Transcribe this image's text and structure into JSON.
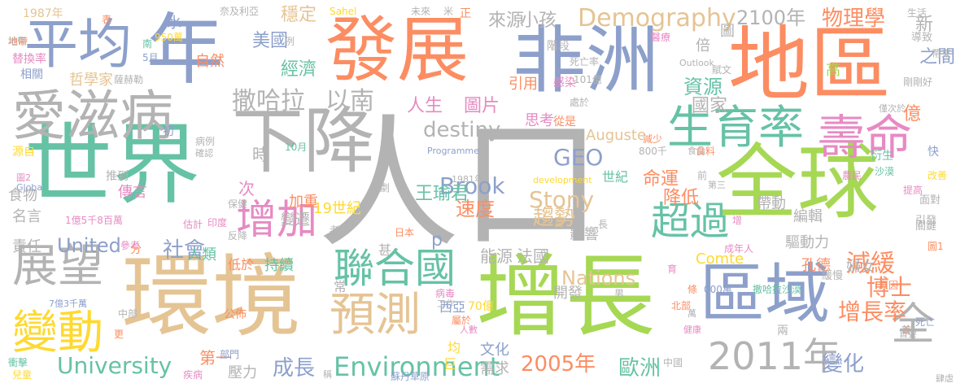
{
  "palette": {
    "green": "#66c2a5",
    "orange": "#fc8d62",
    "blue": "#8da0cb",
    "pink": "#e78ac3",
    "lime": "#a6d854",
    "yellow": "#ffd92f",
    "tan": "#e5c494",
    "gray": "#b3b3b3"
  },
  "words": [
    {
      "id": "renkou",
      "text": "人口",
      "color": "#b3b3b3"
    },
    {
      "id": "shijie",
      "text": "世界",
      "color": "#66c2a5"
    },
    {
      "id": "huanjing",
      "text": "環境",
      "color": "#e5c494"
    },
    {
      "id": "zengzhang",
      "text": "增長",
      "color": "#a6d854"
    },
    {
      "id": "quanqiu",
      "text": "全球",
      "color": "#a6d854"
    },
    {
      "id": "diqu",
      "text": "地區",
      "color": "#fc8d62"
    },
    {
      "id": "feizhou",
      "text": "非洲",
      "color": "#8da0cb"
    },
    {
      "id": "fazhan",
      "text": "發展",
      "color": "#fc8d62"
    },
    {
      "id": "nian",
      "text": "年",
      "color": "#8da0cb"
    },
    {
      "id": "xiajiang",
      "text": "下降",
      "color": "#b3b3b3"
    },
    {
      "id": "quyu",
      "text": "區域",
      "color": "#8da0cb"
    },
    {
      "id": "aizibing",
      "text": "愛滋病",
      "color": "#b3b3b3"
    },
    {
      "id": "pingjun",
      "text": "平均",
      "color": "#8da0cb"
    },
    {
      "id": "shouming",
      "text": "壽命",
      "color": "#e78ac3"
    },
    {
      "id": "shengyulu",
      "text": "生育率",
      "color": "#66c2a5"
    },
    {
      "id": "zhanwang",
      "text": "展望",
      "color": "#b3b3b3"
    },
    {
      "id": "biandong",
      "text": "變動",
      "color": "#ffd92f"
    },
    {
      "id": "yuce",
      "text": "預測",
      "color": "#e5c494"
    },
    {
      "id": "lianheguo",
      "text": "聯合國",
      "color": "#66c2a5"
    },
    {
      "id": "y2011",
      "text": "2011年",
      "color": "#b3b3b3"
    },
    {
      "id": "zengjia",
      "text": "增加",
      "color": "#e78ac3"
    },
    {
      "id": "chaoguo",
      "text": "超過",
      "color": "#66c2a5"
    },
    {
      "id": "environment",
      "text": "Environment",
      "color": "#66c2a5"
    },
    {
      "id": "quan",
      "text": "全",
      "color": "#b3b3b3"
    },
    {
      "id": "sahala",
      "text": "撒哈拉",
      "color": "#b3b3b3"
    },
    {
      "id": "yinan",
      "text": "以南",
      "color": "#b3b3b3"
    },
    {
      "id": "demography",
      "text": "Demography",
      "color": "#e5c494"
    },
    {
      "id": "university",
      "text": "University",
      "color": "#66c2a5"
    },
    {
      "id": "jianhuan",
      "text": "減緩",
      "color": "#fc8d62"
    },
    {
      "id": "zengzhanglu",
      "text": "增長率",
      "color": "#fc8d62"
    },
    {
      "id": "boshi",
      "text": "博士",
      "color": "#fc8d62"
    },
    {
      "id": "y2005",
      "text": "2005年",
      "color": "#fc8d62"
    },
    {
      "id": "oumei",
      "text": "歐洲",
      "color": "#66c2a5"
    },
    {
      "id": "bianhua",
      "text": "變化",
      "color": "#8da0cb"
    },
    {
      "id": "chengzhang",
      "text": "成長",
      "color": "#8da0cb"
    },
    {
      "id": "stony",
      "text": "Stony",
      "color": "#e5c494"
    },
    {
      "id": "brook",
      "text": "Brook",
      "color": "#8da0cb"
    },
    {
      "id": "geo",
      "text": "GEO",
      "color": "#8da0cb"
    },
    {
      "id": "qushi",
      "text": "趨勢",
      "color": "#e5c494"
    },
    {
      "id": "sudu",
      "text": "速度",
      "color": "#fc8d62"
    },
    {
      "id": "destiny",
      "text": "destiny",
      "color": "#b3b3b3"
    },
    {
      "id": "nations",
      "text": "Nations",
      "color": "#e5c494"
    },
    {
      "id": "united",
      "text": "United",
      "color": "#8da0cb"
    },
    {
      "id": "shehui",
      "text": "社會",
      "color": "#8da0cb"
    },
    {
      "id": "wuxingxue",
      "text": "物理學",
      "color": "#fc8d62"
    },
    {
      "id": "y2100",
      "text": "2100年",
      "color": "#b3b3b3"
    },
    {
      "id": "laiyuan",
      "text": "來源",
      "color": "#b3b3b3"
    },
    {
      "id": "xiaohai",
      "text": "小孩",
      "color": "#b3b3b3"
    },
    {
      "id": "wendin",
      "text": "穩定",
      "color": "#e5c494"
    },
    {
      "id": "meiguo",
      "text": "美國",
      "color": "#8da0cb"
    },
    {
      "id": "jingji",
      "text": "經濟",
      "color": "#66c2a5"
    },
    {
      "id": "ziyuan",
      "text": "資源",
      "color": "#66c2a5"
    },
    {
      "id": "guojia",
      "text": "國家",
      "color": "#b3b3b3"
    },
    {
      "id": "renshen",
      "text": "人生",
      "color": "#e78ac3"
    },
    {
      "id": "tupian",
      "text": "圖片",
      "color": "#e78ac3"
    },
    {
      "id": "wangyujun",
      "text": "王瑜君",
      "color": "#66c2a5"
    },
    {
      "id": "mingyun",
      "text": "命運",
      "color": "#fc8d62"
    },
    {
      "id": "jiangdi",
      "text": "降低",
      "color": "#fc8d62"
    },
    {
      "id": "bianji",
      "text": "編輯",
      "color": "#b3b3b3"
    },
    {
      "id": "qudongli",
      "text": "驅動力",
      "color": "#b3b3b3"
    },
    {
      "id": "daidong",
      "text": "帶動",
      "color": "#b3b3b3"
    },
    {
      "id": "kongde",
      "text": "孔德",
      "color": "#fc8d62"
    },
    {
      "id": "funv",
      "text": "婦女",
      "color": "#b3b3b3"
    },
    {
      "id": "auguste",
      "text": "Auguste",
      "color": "#e5c494"
    },
    {
      "id": "comte",
      "text": "Comte",
      "color": "#ffd92f"
    },
    {
      "id": "nengyuan",
      "text": "能源",
      "color": "#b3b3b3"
    },
    {
      "id": "faguo",
      "text": "法國",
      "color": "#b3b3b3"
    },
    {
      "id": "yingxiang",
      "text": "影響",
      "color": "#b3b3b3"
    },
    {
      "id": "yi",
      "text": "億",
      "color": "#fc8d62"
    },
    {
      "id": "xin",
      "text": "新",
      "color": "#b3b3b3"
    },
    {
      "id": "zhijian",
      "text": "之間",
      "color": "#8da0cb"
    },
    {
      "id": "zhixue",
      "text": "哲學家",
      "color": "#e5c494"
    },
    {
      "id": "shiwu",
      "text": "食物",
      "color": "#b3b3b3"
    },
    {
      "id": "chuanyan",
      "text": "傳言",
      "color": "#e78ac3"
    },
    {
      "id": "mingyan",
      "text": "名言",
      "color": "#b3b3b3"
    },
    {
      "id": "zeren",
      "text": "責任",
      "color": "#b3b3b3"
    },
    {
      "id": "jiazhong",
      "text": "加重",
      "color": "#fc8d62"
    },
    {
      "id": "bianqian",
      "text": "變遷",
      "color": "#b3b3b3"
    },
    {
      "id": "c19",
      "text": "19世紀",
      "color": "#ffd92f"
    },
    {
      "id": "renlei",
      "text": "人類",
      "color": "#66c2a5"
    },
    {
      "id": "chixu",
      "text": "持續",
      "color": "#66c2a5"
    },
    {
      "id": "diyu",
      "text": "低於",
      "color": "#fc8d62"
    },
    {
      "id": "diyi",
      "text": "第一",
      "color": "#fc8d62"
    },
    {
      "id": "yali",
      "text": "壓力",
      "color": "#b3b3b3"
    },
    {
      "id": "xuqiu",
      "text": "需求",
      "color": "#b3b3b3"
    },
    {
      "id": "wenhua",
      "text": "文化",
      "color": "#8da0cb"
    },
    {
      "id": "kaifa",
      "text": "開發",
      "color": "#b3b3b3"
    },
    {
      "id": "shi",
      "text": "時",
      "color": "#b3b3b3"
    },
    {
      "id": "ci",
      "text": "次",
      "color": "#e78ac3"
    },
    {
      "id": "y1987",
      "text": "1987年",
      "color": "#e5c494"
    },
    {
      "id": "tihuanlu",
      "text": "替換率",
      "color": "#e78ac3"
    },
    {
      "id": "xiangguan",
      "text": "相關",
      "color": "#8da0cb"
    },
    {
      "id": "ziran",
      "text": "自然",
      "color": "#fc8d62"
    },
    {
      "id": "shui",
      "text": "水",
      "color": "#8da0cb"
    },
    {
      "id": "yinyong",
      "text": "引用",
      "color": "#fc8d62"
    },
    {
      "id": "sihou",
      "text": "思考",
      "color": "#e78ac3"
    },
    {
      "id": "tu",
      "text": "圖",
      "color": "#b3b3b3"
    },
    {
      "id": "bei",
      "text": "倍",
      "color": "#b3b3b3"
    },
    {
      "id": "gao",
      "text": "高",
      "color": "#a6d854"
    },
    {
      "id": "p",
      "text": "p",
      "color": "#8da0cb"
    },
    {
      "id": "shiji",
      "text": "世紀",
      "color": "#66c2a5"
    },
    {
      "id": "yuan",
      "text": "源自",
      "color": "#ffd92f"
    },
    {
      "id": "tuidao",
      "text": "推到",
      "color": "#b3b3b3"
    },
    {
      "id": "jieduan",
      "text": "階段",
      "color": "#b3b3b3"
    },
    {
      "id": "m950",
      "text": "950萬",
      "color": "#ffd92f"
    },
    {
      "id": "yue5",
      "text": "5月",
      "color": "#8da0cb"
    },
    {
      "id": "yue10",
      "text": "10月",
      "color": "#66c2a5"
    },
    {
      "id": "nan",
      "text": "南",
      "color": "#66c2a5"
    },
    {
      "id": "dibu",
      "text": "地帶",
      "color": "#fc8d62"
    },
    {
      "id": "b101",
      "text": "101億",
      "color": "#b3b3b3"
    },
    {
      "id": "siwanglu",
      "text": "死亡率",
      "color": "#b3b3b3"
    },
    {
      "id": "ganran",
      "text": "感染",
      "color": "#e78ac3"
    },
    {
      "id": "chuyu",
      "text": "處於",
      "color": "#b3b3b3"
    },
    {
      "id": "congshi",
      "text": "從是",
      "color": "#fc8d62"
    },
    {
      "id": "fuwen",
      "text": "賦文",
      "color": "#b3b3b3"
    },
    {
      "id": "sahel",
      "text": "Sahel",
      "color": "#ffd92f"
    },
    {
      "id": "weilai",
      "text": "未來",
      "color": "#b3b3b3"
    },
    {
      "id": "outlook",
      "text": "Outlook",
      "color": "#b3b3b3"
    },
    {
      "id": "development",
      "text": "development",
      "color": "#ffd92f"
    },
    {
      "id": "programme",
      "text": "Programme",
      "color": "#8da0cb"
    },
    {
      "id": "global",
      "text": "Global",
      "color": "#8da0cb"
    },
    {
      "id": "ribben",
      "text": "日本",
      "color": "#fc8d62"
    },
    {
      "id": "xiya",
      "text": "西亞",
      "color": "#8da0cb"
    },
    {
      "id": "jun",
      "text": "均",
      "color": "#ffd92f"
    },
    {
      "id": "ju",
      "text": "巨",
      "color": "#ffd92f"
    },
    {
      "id": "shen",
      "text": "甚",
      "color": "#b3b3b3"
    },
    {
      "id": "chang",
      "text": "常",
      "color": "#b3b3b3"
    },
    {
      "id": "b70",
      "text": "70億",
      "color": "#ffd92f"
    },
    {
      "id": "sudan",
      "text": "蘇丹草原",
      "color": "#8da0cb"
    },
    {
      "id": "bingdu",
      "text": "病毒",
      "color": "#e78ac3"
    },
    {
      "id": "gongzuo",
      "text": "工作",
      "color": "#b3b3b3"
    },
    {
      "id": "shuyu",
      "text": "屬於",
      "color": "#fc8d62"
    },
    {
      "id": "renshu",
      "text": "人數",
      "color": "#e78ac3"
    },
    {
      "id": "zhongguo",
      "text": "中國",
      "color": "#b3b3b3"
    },
    {
      "id": "bingliang",
      "text": "病例",
      "color": "#b3b3b3"
    },
    {
      "id": "chu",
      "text": "初",
      "color": "#8da0cb"
    },
    {
      "id": "gonggao",
      "text": "公佈",
      "color": "#fc8d62"
    },
    {
      "id": "laohua",
      "text": "老化",
      "color": "#b3b3b3"
    },
    {
      "id": "yindu",
      "text": "印度",
      "color": "#e78ac3"
    },
    {
      "id": "gujie",
      "text": "估計",
      "color": "#e78ac3"
    },
    {
      "id": "baojian",
      "text": "保健",
      "color": "#b3b3b3"
    },
    {
      "id": "fanjiang",
      "text": "反降",
      "color": "#b3b3b3"
    },
    {
      "id": "fen",
      "text": "分",
      "color": "#fc8d62"
    },
    {
      "id": "cankao",
      "text": "參考",
      "color": "#e78ac3"
    },
    {
      "id": "zhongbu",
      "text": "中部",
      "color": "#b3b3b3"
    },
    {
      "id": "bumen",
      "text": "部門",
      "color": "#8da0cb"
    },
    {
      "id": "jibing",
      "text": "疾病",
      "color": "#e78ac3"
    },
    {
      "id": "chongji",
      "text": "衝擊",
      "color": "#66c2a5"
    },
    {
      "id": "ertong",
      "text": "兒童",
      "color": "#ffd92f"
    },
    {
      "id": "shouxiao",
      "text": "首",
      "color": "#fc8d62"
    },
    {
      "id": "siwang",
      "text": "死亡",
      "color": "#8da0cb"
    },
    {
      "id": "guanjian",
      "text": "關鍵",
      "color": "#b3b3b3"
    },
    {
      "id": "mianlin",
      "text": "面對",
      "color": "#b3b3b3"
    },
    {
      "id": "yinfa",
      "text": "引發",
      "color": "#b3b3b3"
    },
    {
      "id": "tu1",
      "text": "圖1",
      "color": "#fc8d62"
    },
    {
      "id": "tigao",
      "text": "提高",
      "color": "#e78ac3"
    },
    {
      "id": "gaishan",
      "text": "改善",
      "color": "#ffd92f"
    },
    {
      "id": "kuai",
      "text": "快",
      "color": "#8da0cb"
    },
    {
      "id": "yanshi",
      "text": "衍生",
      "color": "#66c2a5"
    },
    {
      "id": "shamo",
      "text": "沙漠",
      "color": "#66c2a5"
    },
    {
      "id": "nongmin",
      "text": "農民",
      "color": "#e78ac3"
    },
    {
      "id": "zhongdi",
      "text": "帶來",
      "color": "#b3b3b3"
    },
    {
      "id": "daozhi",
      "text": "導致",
      "color": "#b3b3b3"
    },
    {
      "id": "shenghuo",
      "text": "生活",
      "color": "#b3b3b3"
    },
    {
      "id": "yiliao",
      "text": "醫療",
      "color": "#e78ac3"
    },
    {
      "id": "jinci",
      "text": "僅次於",
      "color": "#b3b3b3"
    },
    {
      "id": "jinhuan",
      "text": "緩慢",
      "color": "#b3b3b3"
    },
    {
      "id": "chengren",
      "text": "成年人",
      "color": "#e78ac3"
    },
    {
      "id": "sahashamo",
      "text": "撒哈拉沙漠",
      "color": "#66c2a5"
    },
    {
      "id": "w000",
      "text": "000萬",
      "color": "#8da0cb"
    },
    {
      "id": "yuanyin",
      "text": "原因",
      "color": "#fc8d62"
    },
    {
      "id": "liang",
      "text": "兩",
      "color": "#b3b3b3"
    },
    {
      "id": "beibu",
      "text": "北部",
      "color": "#fc8d62"
    },
    {
      "id": "jiankang",
      "text": "健康",
      "color": "#e78ac3"
    },
    {
      "id": "nan2",
      "text": "男",
      "color": "#b3b3b3"
    },
    {
      "id": "shiwu2",
      "text": "食料",
      "color": "#fc8d62"
    },
    {
      "id": "jianshao",
      "text": "減少",
      "color": "#fc8d62"
    },
    {
      "id": "qian800",
      "text": "800千",
      "color": "#b3b3b3"
    },
    {
      "id": "sahelq",
      "text": "奈及利亞",
      "color": "#b3b3b3"
    },
    {
      "id": "mi",
      "text": "米",
      "color": "#b3b3b3"
    },
    {
      "id": "zheng",
      "text": "正",
      "color": "#fc8d62"
    },
    {
      "id": "biao",
      "text": "表",
      "color": "#fc8d62"
    },
    {
      "id": "li",
      "text": "例",
      "color": "#b3b3b3"
    },
    {
      "id": "zhang",
      "text": "長",
      "color": "#b3b3b3"
    },
    {
      "id": "yan",
      "text": "言",
      "color": "#e5c494"
    },
    {
      "id": "xxx",
      "text": "肆虐",
      "color": "#b3b3b3"
    },
    {
      "id": "gengyao",
      "text": "更",
      "color": "#fc8d62"
    },
    {
      "id": "qian",
      "text": "前",
      "color": "#b3b3b3"
    },
    {
      "id": "san",
      "text": "第三",
      "color": "#b3b3b3"
    },
    {
      "id": "tiao",
      "text": "條",
      "color": "#fc8d62"
    },
    {
      "id": "yu",
      "text": "育",
      "color": "#e78ac3"
    },
    {
      "id": "wan",
      "text": "萬",
      "color": "#b3b3b3"
    },
    {
      "id": "shouyi",
      "text": "首",
      "color": "#b3b3b3"
    },
    {
      "id": "zenggao",
      "text": "剛剛好",
      "color": "#b3b3b3"
    },
    {
      "id": "yuedi",
      "text": "1億5千8百萬",
      "color": "#e78ac3"
    },
    {
      "id": "qiyi",
      "text": "7億3千萬",
      "color": "#8da0cb"
    },
    {
      "id": "y1981",
      "text": "1981年",
      "color": "#b3b3b3"
    },
    {
      "id": "jiangzhu",
      "text": "加劇",
      "color": "#b3b3b3"
    },
    {
      "id": "tu2",
      "text": "圖2",
      "color": "#e78ac3"
    },
    {
      "id": "dishou",
      "text": "地帶",
      "color": "#b3b3b3"
    },
    {
      "id": "sahaun",
      "text": "薩赫勒",
      "color": "#b3b3b3"
    },
    {
      "id": "di",
      "text": "底",
      "color": "#b3b3b3"
    },
    {
      "id": "shouyin",
      "text": "首要",
      "color": "#b3b3b3"
    },
    {
      "id": "jipin",
      "text": "食品",
      "color": "#b3b3b3"
    },
    {
      "id": "shui2",
      "text": "確認",
      "color": "#b3b3b3"
    },
    {
      "id": "zeng",
      "text": "增",
      "color": "#e78ac3"
    },
    {
      "id": "leiqi",
      "text": "稱",
      "color": "#b3b3b3"
    }
  ]
}
